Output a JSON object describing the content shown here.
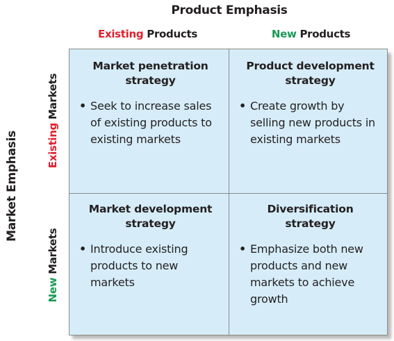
{
  "product_emphasis": {
    "title": "Product Emphasis",
    "columns": [
      {
        "accent": "Existing",
        "rest": " Products",
        "accent_color": "#e0202e"
      },
      {
        "accent": "New",
        "rest": " Products",
        "accent_color": "#1a9a56"
      }
    ]
  },
  "market_emphasis": {
    "title": "Market Emphasis",
    "rows": [
      {
        "accent": "Existing",
        "rest": " Markets",
        "accent_color": "#e0202e"
      },
      {
        "accent": "New",
        "rest": " Markets",
        "accent_color": "#1a9a56"
      }
    ]
  },
  "cells": [
    {
      "title": "Market penetration strategy",
      "bullet": "•",
      "description": "Seek to increase sales of existing products to existing markets"
    },
    {
      "title": "Product development strategy",
      "bullet": "•",
      "description": "Create growth by selling new products in existing markets"
    },
    {
      "title": "Market development strategy",
      "bullet": "•",
      "description": "Introduce existing products to new markets"
    },
    {
      "title": "Diversification strategy",
      "bullet": "•",
      "description": "Emphasize both new products and new markets to achieve growth"
    }
  ],
  "colors": {
    "cell_fill": "#d6edf9",
    "grid_line": "#8a8a8a",
    "text": "#231f20"
  }
}
